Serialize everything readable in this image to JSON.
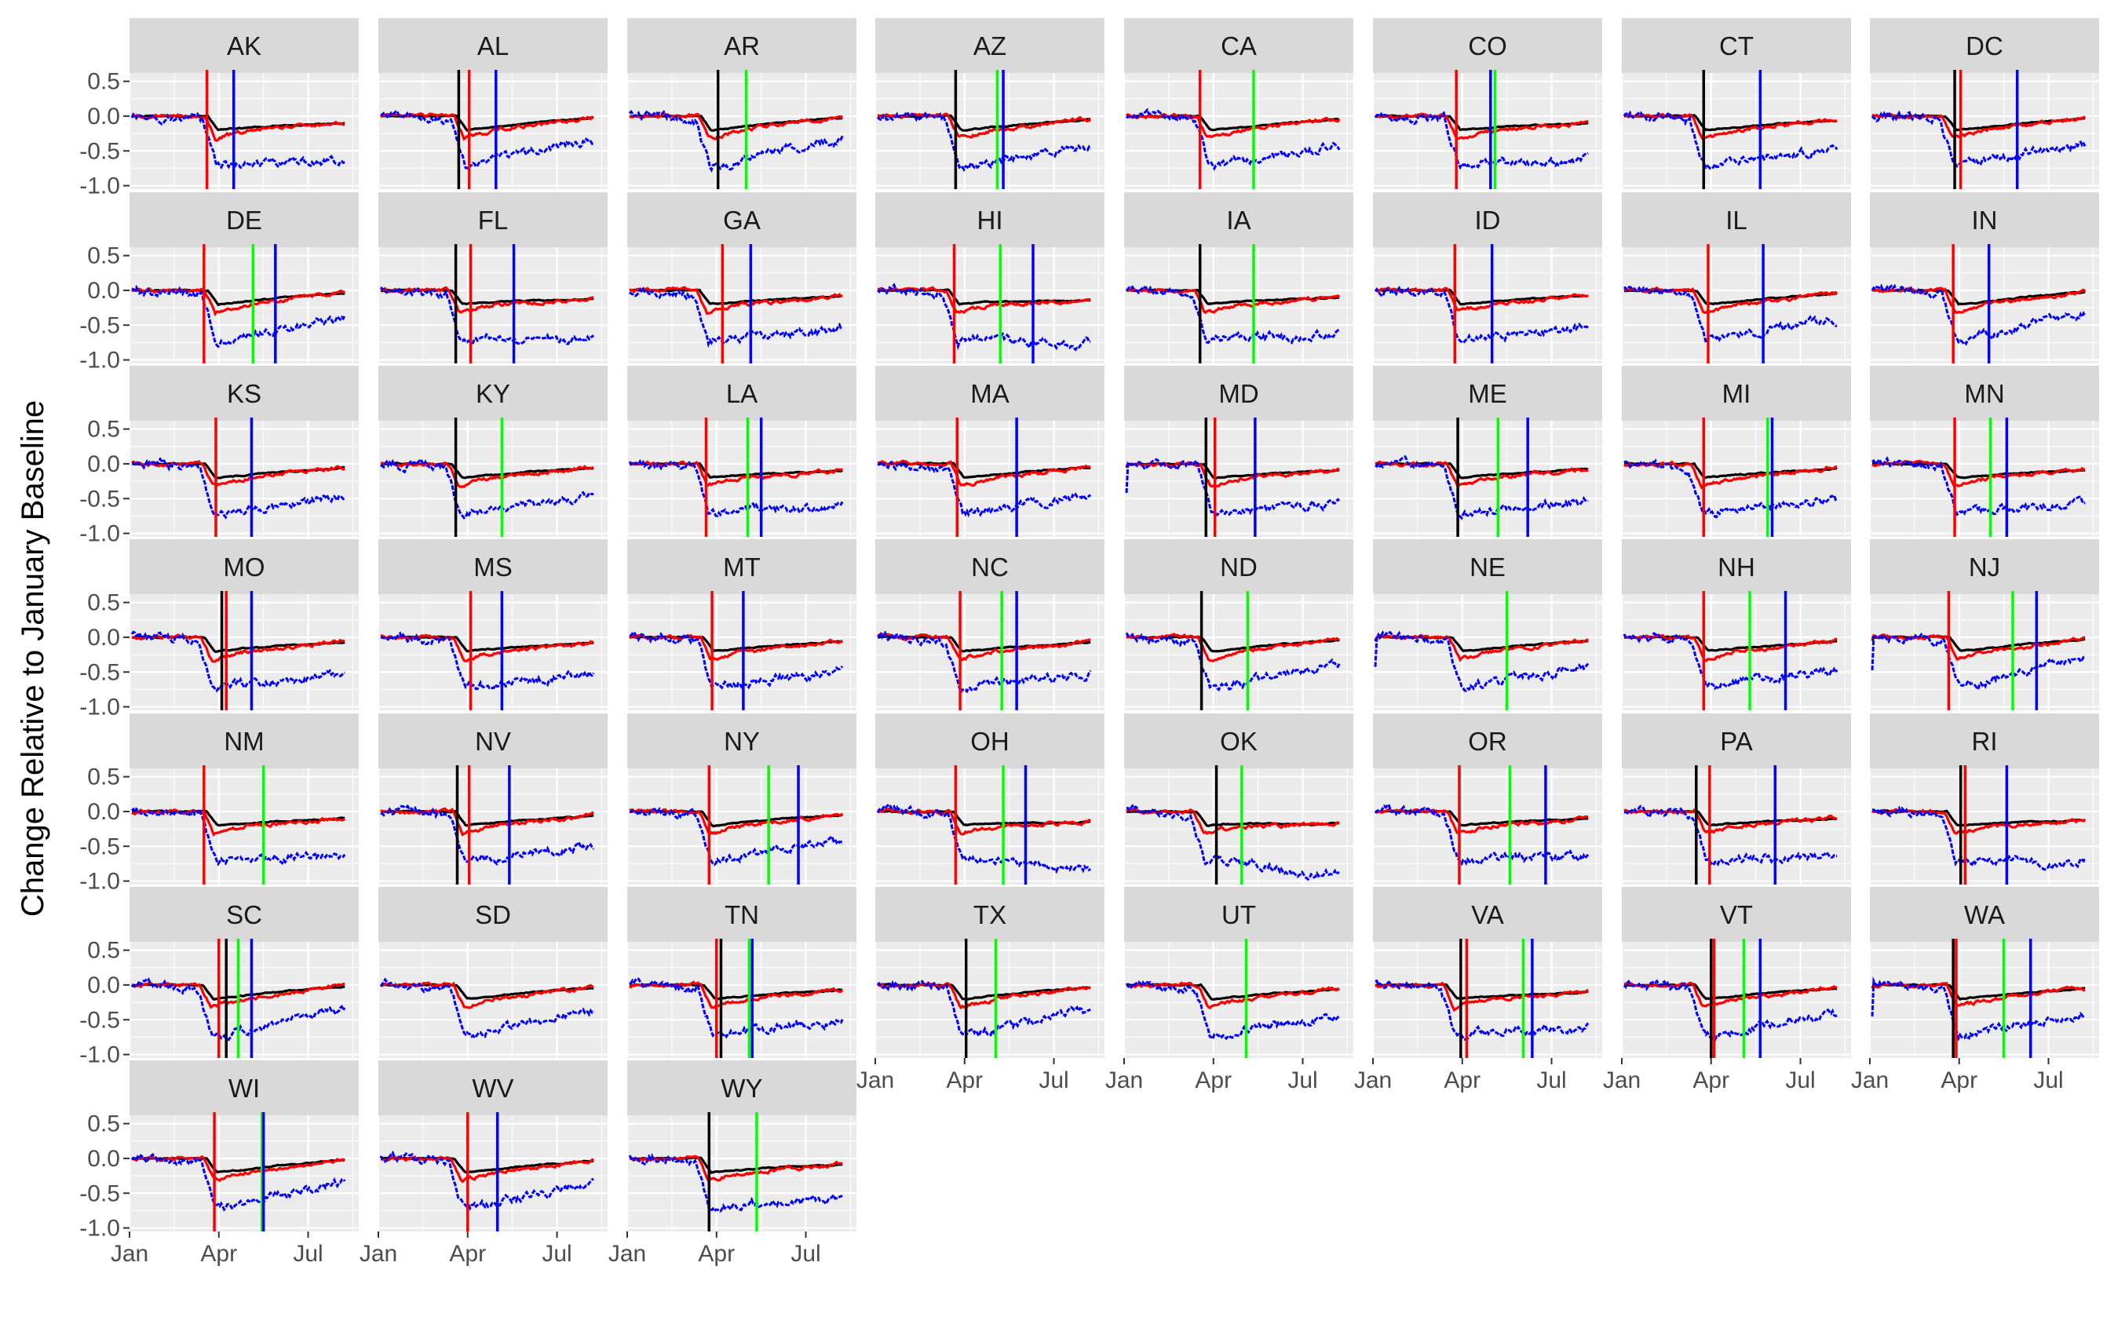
{
  "chart_data": {
    "type": "line",
    "layout": "faceted small multiples (8 columns)",
    "title": "",
    "xlabel": "",
    "ylabel": "Change Relative to January Baseline",
    "x_ticks": [
      "Jan",
      "Apr",
      "Jul"
    ],
    "x_tick_values": [
      0,
      3,
      6
    ],
    "xlim": [
      0,
      7.7
    ],
    "y_ticks": [
      "0.5",
      "0.0",
      "-0.5",
      "-1.0"
    ],
    "y_tick_values": [
      0.5,
      0.0,
      -0.5,
      -1.0
    ],
    "ylim": [
      -1.05,
      0.62
    ],
    "grid": true,
    "legend": "none",
    "colors": {
      "panel_bg": "#ebebeb",
      "grid": "#ffffff",
      "strip_bg": "#d9d9d9",
      "series_black": "#000000",
      "series_red": "#ff0000",
      "series_blue": "#0000ff",
      "vline_green": "#00ff00"
    },
    "series": [
      {
        "color": "black",
        "shape": [
          0,
          0.0,
          2.55,
          0.0,
          2.9,
          -0.2,
          5.0,
          -0.12,
          7.7,
          -0.05
        ]
      },
      {
        "color": "red",
        "shape": [
          0,
          0.0,
          2.45,
          0.0,
          2.8,
          -0.32,
          4.0,
          -0.2,
          7.7,
          -0.03
        ]
      },
      {
        "color": "blue",
        "shape": [
          0,
          0.02,
          2.35,
          -0.05,
          2.85,
          -0.72,
          4.5,
          -0.62,
          7.7,
          -0.45
        ]
      }
    ],
    "panels": [
      {
        "state": "AK",
        "vlines": {
          "red": 2.6,
          "blue": 3.5
        }
      },
      {
        "state": "AL",
        "vlines": {
          "black": 2.7,
          "red": 3.05,
          "blue": 3.95
        }
      },
      {
        "state": "AR",
        "vlines": {
          "black": 3.05,
          "green": 4.0
        }
      },
      {
        "state": "AZ",
        "vlines": {
          "black": 2.7,
          "green": 4.1,
          "blue": 4.3
        }
      },
      {
        "state": "CA",
        "vlines": {
          "red": 2.55,
          "green": 4.35
        }
      },
      {
        "state": "CO",
        "vlines": {
          "red": 2.8,
          "blue": 3.95,
          "green": 4.1
        }
      },
      {
        "state": "CT",
        "vlines": {
          "black": 2.75,
          "blue": 4.65
        }
      },
      {
        "state": "DC",
        "vlines": {
          "black": 2.85,
          "red": 3.05,
          "blue": 4.95
        }
      },
      {
        "state": "DE",
        "vlines": {
          "red": 2.5,
          "green": 4.15,
          "blue": 4.9
        }
      },
      {
        "state": "FL",
        "vlines": {
          "black": 2.6,
          "red": 3.1,
          "blue": 4.55
        }
      },
      {
        "state": "GA",
        "vlines": {
          "red": 3.2,
          "blue": 4.15
        }
      },
      {
        "state": "HI",
        "vlines": {
          "red": 2.65,
          "green": 4.2,
          "blue": 5.3
        }
      },
      {
        "state": "IA",
        "vlines": {
          "black": 2.55,
          "green": 4.35
        }
      },
      {
        "state": "ID",
        "vlines": {
          "red": 2.75,
          "blue": 4.0
        }
      },
      {
        "state": "IL",
        "vlines": {
          "red": 2.9,
          "blue": 4.75
        }
      },
      {
        "state": "IN",
        "vlines": {
          "red": 2.8,
          "blue": 4.0
        }
      },
      {
        "state": "KS",
        "vlines": {
          "red": 2.9,
          "blue": 4.1
        }
      },
      {
        "state": "KY",
        "vlines": {
          "black": 2.6,
          "green": 4.15
        }
      },
      {
        "state": "LA",
        "vlines": {
          "red": 2.65,
          "green": 4.05,
          "blue": 4.5
        }
      },
      {
        "state": "MA",
        "vlines": {
          "red": 2.75,
          "blue": 4.75
        }
      },
      {
        "state": "MD",
        "vlines": {
          "black": 2.75,
          "red": 3.05,
          "blue": 4.4
        }
      },
      {
        "state": "ME",
        "vlines": {
          "black": 2.85,
          "green": 4.2,
          "blue": 5.2
        }
      },
      {
        "state": "MI",
        "vlines": {
          "red": 2.75,
          "green": 4.9,
          "blue": 5.05
        }
      },
      {
        "state": "MN",
        "vlines": {
          "red": 2.85,
          "green": 4.05,
          "blue": 4.6
        }
      },
      {
        "state": "MO",
        "vlines": {
          "black": 3.1,
          "red": 3.25,
          "blue": 4.1
        }
      },
      {
        "state": "MS",
        "vlines": {
          "red": 3.1,
          "blue": 4.15
        }
      },
      {
        "state": "MT",
        "vlines": {
          "red": 2.85,
          "blue": 3.9
        }
      },
      {
        "state": "NC",
        "vlines": {
          "red": 2.85,
          "green": 4.25,
          "blue": 4.75
        }
      },
      {
        "state": "ND",
        "vlines": {
          "black": 2.6,
          "green": 4.15
        }
      },
      {
        "state": "NE",
        "vlines": {
          "green": 4.5
        }
      },
      {
        "state": "NH",
        "vlines": {
          "red": 2.75,
          "green": 4.3,
          "blue": 5.5
        }
      },
      {
        "state": "NJ",
        "vlines": {
          "red": 2.65,
          "green": 4.8,
          "blue": 5.6
        }
      },
      {
        "state": "NM",
        "vlines": {
          "red": 2.5,
          "green": 4.5
        }
      },
      {
        "state": "NV",
        "vlines": {
          "black": 2.65,
          "red": 3.05,
          "blue": 4.4
        }
      },
      {
        "state": "NY",
        "vlines": {
          "red": 2.75,
          "green": 4.75,
          "blue": 5.75
        }
      },
      {
        "state": "OH",
        "vlines": {
          "red": 2.7,
          "green": 4.3,
          "blue": 5.05
        }
      },
      {
        "state": "OK",
        "vlines": {
          "black": 3.1,
          "green": 3.95
        }
      },
      {
        "state": "OR",
        "vlines": {
          "red": 2.9,
          "green": 4.6,
          "blue": 5.8
        }
      },
      {
        "state": "PA",
        "vlines": {
          "black": 2.5,
          "red": 2.95,
          "blue": 5.15
        }
      },
      {
        "state": "RI",
        "vlines": {
          "black": 3.05,
          "red": 3.2,
          "blue": 4.6
        }
      },
      {
        "state": "SC",
        "vlines": {
          "red": 3.0,
          "black": 3.25,
          "green": 3.65,
          "blue": 4.1
        }
      },
      {
        "state": "SD",
        "vlines": {}
      },
      {
        "state": "TN",
        "vlines": {
          "red": 3.0,
          "black": 3.15,
          "green": 4.1,
          "blue": 4.2
        }
      },
      {
        "state": "TX",
        "vlines": {
          "black": 3.05,
          "green": 4.05
        }
      },
      {
        "state": "UT",
        "vlines": {
          "green": 4.1
        }
      },
      {
        "state": "VA",
        "vlines": {
          "black": 2.95,
          "red": 3.15,
          "green": 5.05,
          "blue": 5.35
        }
      },
      {
        "state": "VT",
        "vlines": {
          "black": 3.0,
          "red": 3.1,
          "green": 4.1,
          "blue": 4.65
        }
      },
      {
        "state": "WA",
        "vlines": {
          "black": 2.8,
          "red": 2.9,
          "green": 4.5,
          "blue": 5.4
        }
      },
      {
        "state": "WI",
        "vlines": {
          "red": 2.85,
          "green": 4.45,
          "blue": 4.5
        }
      },
      {
        "state": "WV",
        "vlines": {
          "red": 3.0,
          "blue": 4.0
        }
      },
      {
        "state": "WY",
        "vlines": {
          "black": 2.75,
          "green": 4.35
        }
      }
    ]
  }
}
